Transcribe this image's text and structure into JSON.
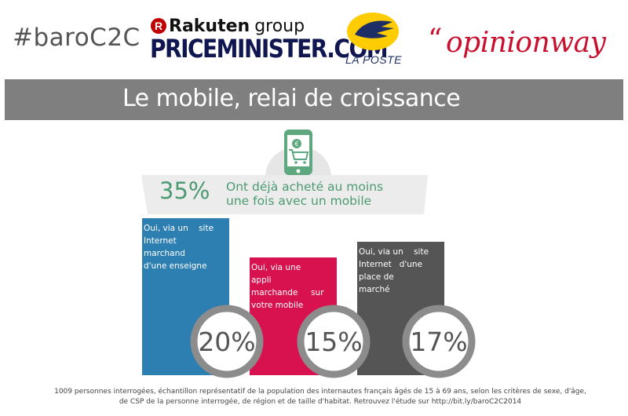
{
  "header": {
    "hashtag": "#baroC2C",
    "rakuten_word": "Rakuten",
    "rakuten_group": "group",
    "priceminister": "PRICEMINISTER.COM",
    "laposte": "LA POSTE",
    "opinionway": "opinionway"
  },
  "title": "Le mobile, relai de croissance",
  "headline_stat": {
    "percent": "35%",
    "label_line1": "Ont déjà acheté au moins",
    "label_line2": "une fois avec un mobile"
  },
  "chart_data": {
    "type": "bar",
    "categories": [
      "Oui, via un site Internet marchand d'une enseigne",
      "Oui, via une appli marchande sur votre mobile",
      "Oui, via un site Internet d'une place de marché"
    ],
    "values": [
      20,
      15,
      17
    ],
    "value_labels": [
      "20%",
      "15%",
      "17%"
    ],
    "category_lines": [
      [
        "Oui, via un    site",
        "Internet",
        "marchand",
        "d'une enseigne"
      ],
      [
        "Oui, via une",
        "appli",
        "marchande     sur",
        "votre mobile"
      ],
      [
        "Oui, via un    site",
        "Internet   d'une",
        "place de",
        "marché"
      ]
    ],
    "colors": [
      "#2e7fb1",
      "#d8114f",
      "#555555"
    ],
    "grid": false,
    "legend": "none"
  },
  "footnote": {
    "line1": "1009 personnes interrogées, échantillon représentatif de la population des internautes français âgés de 15 à 69 ans, selon les critères de sexe, d'âge,",
    "line2": "de CSP de la personne interrogée, de région et de taille d'habitat. Retrouvez l'étude sur http://bit.ly/baroC2C2014"
  },
  "colors": {
    "title_bar": "#7f7f7f",
    "stat_green": "#4c9a72",
    "circle_ring": "#8c8c8c",
    "circle_fill": "#ffffff"
  }
}
